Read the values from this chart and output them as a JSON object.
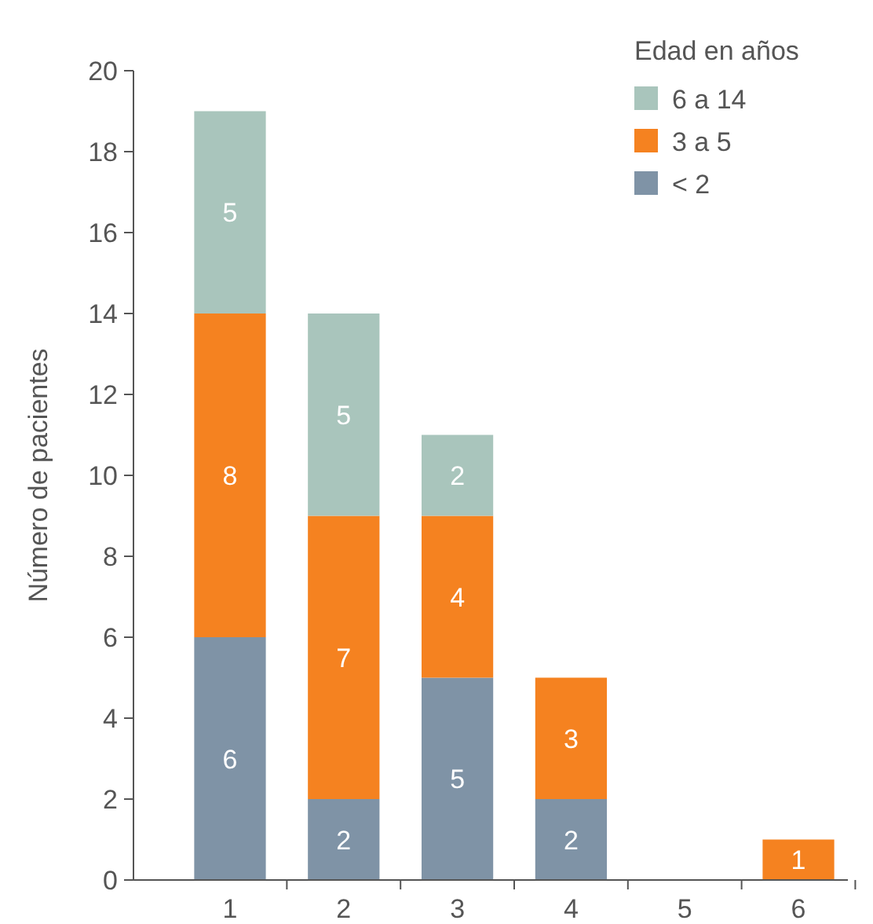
{
  "chart_data": {
    "type": "bar",
    "stacked": true,
    "ylabel": "Número de pacientes",
    "legend_title": "Edad en años",
    "legend": "top right",
    "grid": false,
    "data_labels": true,
    "categories": [
      "1",
      "2",
      "3",
      "4",
      "5",
      "6"
    ],
    "ylim": [
      0,
      20
    ],
    "yticks": [
      0,
      2,
      4,
      6,
      8,
      10,
      12,
      14,
      16,
      18,
      20
    ],
    "series": [
      {
        "name": "< 2",
        "color": "#7f93a6",
        "values": [
          6,
          2,
          5,
          2,
          null,
          null
        ]
      },
      {
        "name": "3 a 5",
        "color": "#f58220",
        "values": [
          8,
          7,
          4,
          3,
          null,
          1
        ]
      },
      {
        "name": "6 a 14",
        "color": "#a9c5bc",
        "values": [
          5,
          5,
          2,
          null,
          null,
          null
        ]
      }
    ]
  }
}
